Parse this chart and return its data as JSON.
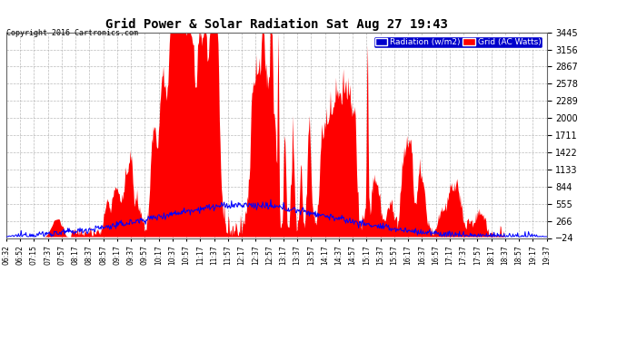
{
  "title": "Grid Power & Solar Radiation Sat Aug 27 19:43",
  "copyright": "Copyright 2016 Cartronics.com",
  "legend_radiation": "Radiation (w/m2)",
  "legend_grid": "Grid (AC Watts)",
  "yticks": [
    3445.0,
    3156.0,
    2867.0,
    2577.9,
    2288.9,
    1999.8,
    1710.8,
    1421.7,
    1132.7,
    843.6,
    554.6,
    265.6,
    -23.5
  ],
  "ymin": -23.5,
  "ymax": 3445.0,
  "bg_color": "#ffffff",
  "plot_bg_color": "#ffffff",
  "grid_color": "#aaaaaa",
  "radiation_color": "#0000ff",
  "grid_power_color": "#ff0000",
  "title_color": "#000000",
  "tick_label_color": "#000000",
  "xtick_labels": [
    "06:32",
    "06:52",
    "07:15",
    "07:37",
    "07:57",
    "08:17",
    "08:37",
    "08:57",
    "09:17",
    "09:37",
    "09:57",
    "10:17",
    "10:37",
    "10:57",
    "11:17",
    "11:37",
    "11:57",
    "12:17",
    "12:37",
    "12:57",
    "13:17",
    "13:37",
    "13:57",
    "14:17",
    "14:37",
    "14:57",
    "15:17",
    "15:37",
    "15:57",
    "16:17",
    "16:37",
    "16:57",
    "17:17",
    "17:37",
    "17:57",
    "18:17",
    "18:37",
    "18:57",
    "19:17",
    "19:37"
  ],
  "n_points": 800
}
